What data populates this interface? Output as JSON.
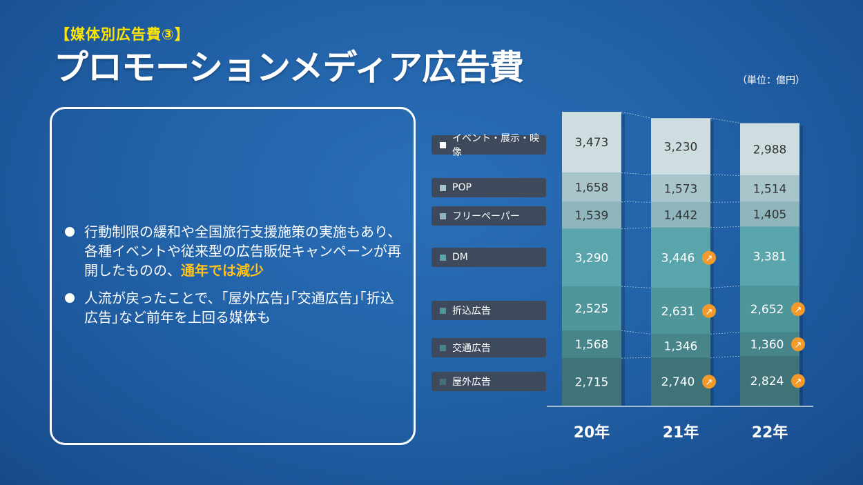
{
  "header": {
    "subtitle": "【媒体別広告費③】",
    "title": "プロモーションメディア広告費",
    "unit": "（単位：億円）"
  },
  "bullets": [
    {
      "text": "行動制限の緩和や全国旅行支援施策の実施もあり、各種イベントや従来型の広告販促キャンペーンが再開したものの、",
      "highlight": "通年では減少"
    },
    {
      "text": "人流が戻ったことで、｢屋外広告｣｢交通広告｣｢折込広告｣など前年を上回る媒体も",
      "highlight": ""
    }
  ],
  "chart_data": {
    "type": "bar",
    "stacked": true,
    "categories": [
      "20年",
      "21年",
      "22年"
    ],
    "series": [
      {
        "name": "屋外広告",
        "values": [
          2715,
          2740,
          2824
        ],
        "color": "#3f7377",
        "up": [
          false,
          true,
          true
        ]
      },
      {
        "name": "交通広告",
        "values": [
          1568,
          1346,
          1360
        ],
        "color": "#47858a",
        "up": [
          false,
          false,
          true
        ]
      },
      {
        "name": "折込広告",
        "values": [
          2525,
          2631,
          2652
        ],
        "color": "#4f959a",
        "up": [
          false,
          true,
          true
        ]
      },
      {
        "name": "DM",
        "values": [
          3290,
          3446,
          3381
        ],
        "color": "#5aa4ab",
        "up": [
          false,
          true,
          false
        ]
      },
      {
        "name": "フリーペーパー",
        "values": [
          1539,
          1442,
          1405
        ],
        "color": "#8fb6bd",
        "up": [
          false,
          false,
          false
        ]
      },
      {
        "name": "POP",
        "values": [
          1658,
          1573,
          1514
        ],
        "color": "#a8c5cb",
        "up": [
          false,
          false,
          false
        ]
      },
      {
        "name": "イベント・展示・映像",
        "values": [
          3473,
          3230,
          2988
        ],
        "color": "#cddde0",
        "up": [
          false,
          false,
          false
        ]
      }
    ],
    "legend": "left",
    "grid": false,
    "up_marker_color": "#f49a2a"
  }
}
